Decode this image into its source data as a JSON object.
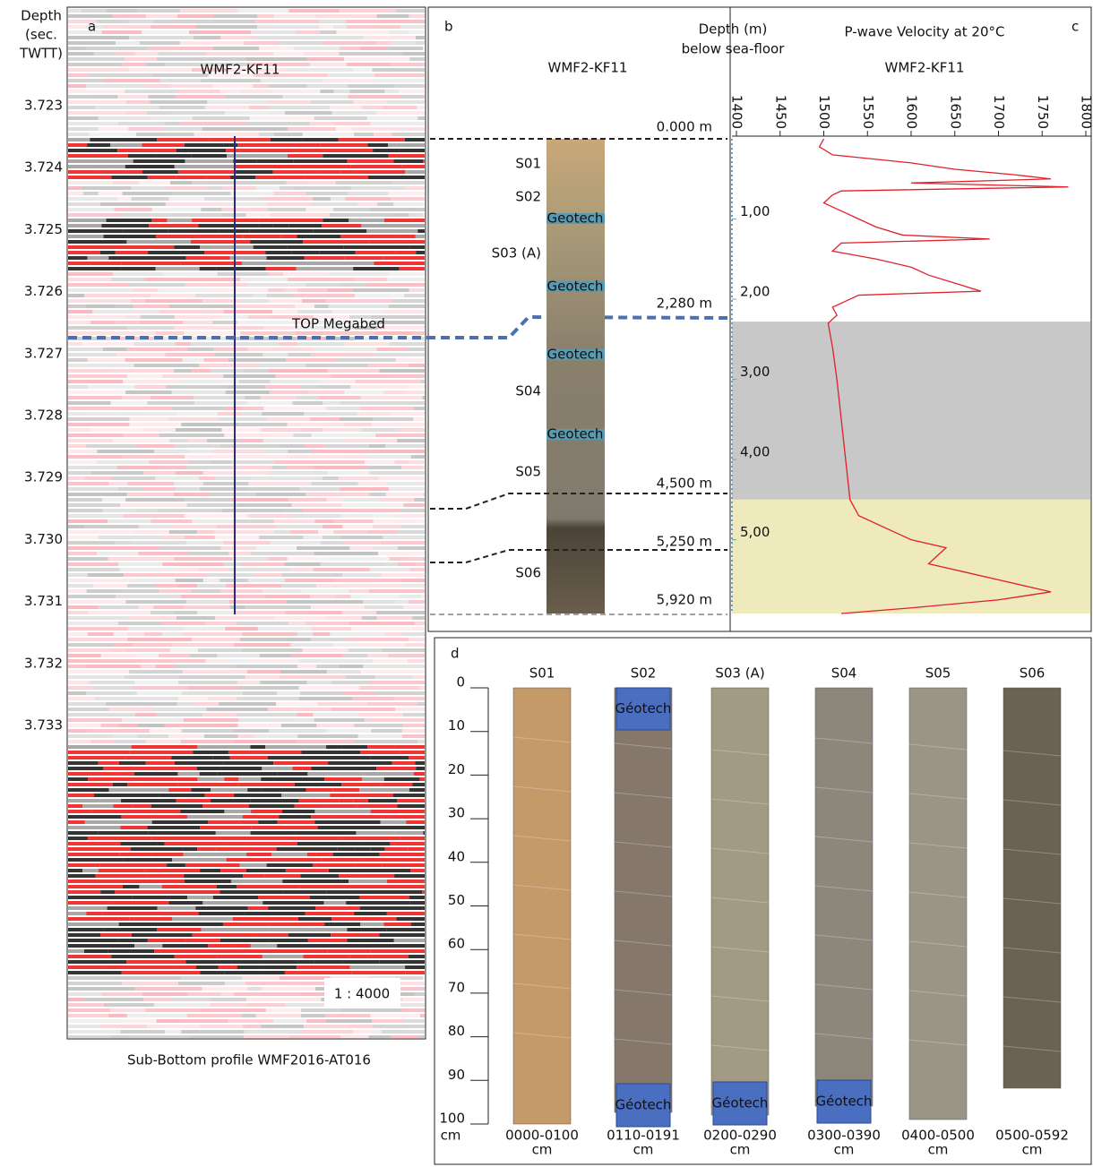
{
  "panel_a": {
    "label": "a",
    "axis_title": [
      "Depth",
      "(sec.",
      "TWTT)"
    ],
    "depth_ticks": [
      "3.723",
      "3.724",
      "3.725",
      "3.726",
      "3.727",
      "3.728",
      "3.729",
      "3.730",
      "3.731",
      "3.732",
      "3.733"
    ],
    "core_name": "WMF2-KF11",
    "horizon": "TOP Megabed",
    "scale": "1 : 4000",
    "caption": "Sub-Bottom profile WMF2016-AT016"
  },
  "panel_b": {
    "label": "b",
    "title": "WMF2-KF11",
    "sections": [
      "S01",
      "S02",
      "S03 (A)",
      "S04",
      "S05",
      "S06"
    ],
    "geotech": [
      "Geotech",
      "Geotech",
      "Geotech",
      "Geotech"
    ],
    "depth_markers": [
      "0.000 m",
      "2,280 m",
      "4,500 m",
      "5,250 m",
      "5,920 m"
    ]
  },
  "chart_data": {
    "type": "line",
    "label": "c",
    "title": "P-wave Velocity at 20°C",
    "subtitle": "WMF2-KF11",
    "depth_label": [
      "Depth (m)",
      "below sea-floor"
    ],
    "color": "#e0202a",
    "x": [
      0,
      0.1,
      0.2,
      0.3,
      0.38,
      0.45,
      0.5,
      0.55,
      0.6,
      0.65,
      0.7,
      0.8,
      0.9,
      1.0,
      1.1,
      1.2,
      1.25,
      1.3,
      1.4,
      1.5,
      1.6,
      1.7,
      1.8,
      1.9,
      1.95,
      2.0,
      2.1,
      2.2,
      2.3,
      2.6,
      3.0,
      3.5,
      4.0,
      4.5,
      4.7,
      4.9,
      5.0,
      5.1,
      5.2,
      5.3,
      5.4,
      5.5,
      5.6,
      5.65,
      5.7,
      5.75,
      5.8,
      5.85,
      5.92
    ],
    "values": [
      1500,
      1495,
      1510,
      1600,
      1650,
      1720,
      1760,
      1600,
      1780,
      1520,
      1510,
      1500,
      1520,
      1540,
      1560,
      1590,
      1690,
      1520,
      1510,
      1560,
      1600,
      1620,
      1650,
      1680,
      1540,
      1530,
      1510,
      1515,
      1505,
      1510,
      1515,
      1520,
      1525,
      1530,
      1540,
      1580,
      1600,
      1640,
      1630,
      1620,
      1660,
      1700,
      1740,
      1760,
      1730,
      1700,
      1650,
      1600,
      1520
    ],
    "vlim": [
      1400,
      1800
    ],
    "vticks": [
      1400,
      1450,
      1500,
      1550,
      1600,
      1650,
      1700,
      1750,
      1800
    ],
    "depth_lim": [
      0,
      5.92
    ],
    "depth_ticks": [
      {
        "value": 1,
        "label": "1,00"
      },
      {
        "value": 2,
        "label": "2,00"
      },
      {
        "value": 3,
        "label": "3,00"
      },
      {
        "value": 4,
        "label": "4,00"
      },
      {
        "value": 5,
        "label": "5,00"
      }
    ],
    "zones": [
      {
        "from": 2.28,
        "to": 4.5,
        "color": "#c8c8c8"
      },
      {
        "from": 4.5,
        "to": 5.92,
        "color": "#eeeabc"
      }
    ]
  },
  "panel_d": {
    "label": "d",
    "scale_ticks": [
      0,
      10,
      20,
      30,
      40,
      50,
      60,
      70,
      80,
      90,
      100
    ],
    "scale_unit": "cm",
    "geotech": "Géotech",
    "cores": [
      {
        "name": "S01",
        "range": "0000-0100",
        "unit": "cm"
      },
      {
        "name": "S02",
        "range": "0110-0191",
        "unit": "cm"
      },
      {
        "name": "S03 (A)",
        "range": "0200-0290",
        "unit": "cm"
      },
      {
        "name": "S04",
        "range": "0300-0390",
        "unit": "cm"
      },
      {
        "name": "S05",
        "range": "0400-0500",
        "unit": "cm"
      },
      {
        "name": "S06",
        "range": "0500-0592",
        "unit": "cm"
      }
    ]
  }
}
